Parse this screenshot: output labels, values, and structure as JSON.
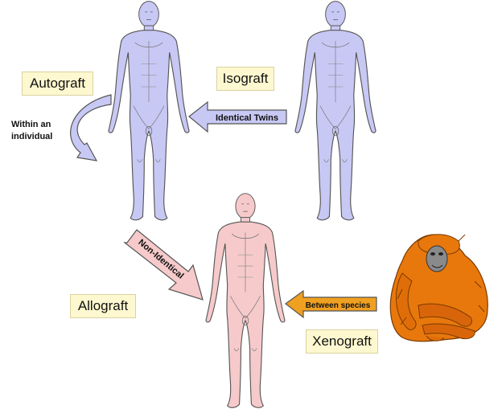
{
  "labels": {
    "autograft": "Autograft",
    "isograft": "Isograft",
    "allograft": "Allograft",
    "xenograft": "Xenograft"
  },
  "arrows": {
    "within_line1": "Within an",
    "within_line2": "individual",
    "identical_twins": "Identical Twins",
    "non_identical": "Non-Identical",
    "between_species": "Between species"
  },
  "colors": {
    "autograft_body": "#c8c8f5",
    "isograft_body": "#c8c8f5",
    "allograft_body": "#f6caca",
    "xenograft_animal": "#e8780c",
    "label_fill": "#fdf8cf",
    "blue_arrow": "#c8c8f5",
    "pink_arrow": "#f6caca",
    "orange_arrow": "#f0a020"
  },
  "icons": {
    "human": "human-figure-icon",
    "animal": "orangutan-icon"
  }
}
